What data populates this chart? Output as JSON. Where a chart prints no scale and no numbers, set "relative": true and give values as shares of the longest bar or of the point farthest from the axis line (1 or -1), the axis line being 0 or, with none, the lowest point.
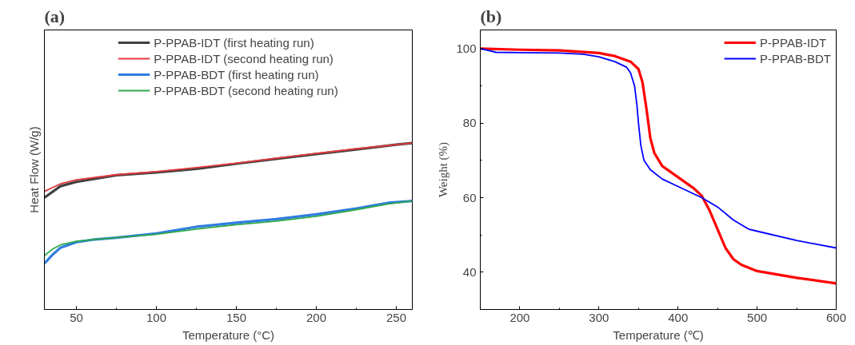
{
  "chart_data": [
    {
      "type": "line",
      "title": "(a)",
      "xlabel": "Temperature (°C)",
      "ylabel": "Heat Flow (W/g)",
      "relative": true,
      "xlim": [
        30,
        260
      ],
      "xticks": [
        50,
        100,
        150,
        200,
        250
      ],
      "legend": "top",
      "grid": false,
      "series": [
        {
          "name": "P-PPAB-IDT (first heating run)",
          "color": "#404040",
          "x": [
            30,
            40,
            50,
            75,
            100,
            125,
            150,
            175,
            200,
            225,
            250,
            260
          ],
          "values": [
            0.672,
            0.741,
            0.767,
            0.807,
            0.824,
            0.845,
            0.876,
            0.905,
            0.934,
            0.962,
            0.991,
            1.0
          ]
        },
        {
          "name": "P-PPAB-IDT (second heating run)",
          "color": "#e8383d",
          "x": [
            30,
            40,
            50,
            75,
            100,
            125,
            150,
            175,
            200,
            225,
            250,
            260
          ],
          "values": [
            0.71,
            0.755,
            0.779,
            0.81,
            0.829,
            0.853,
            0.879,
            0.909,
            0.938,
            0.966,
            0.991,
            1.0
          ]
        },
        {
          "name": "P-PPAB-BDT (first heating run)",
          "color": "#2f7de1",
          "x": [
            30,
            35,
            40,
            50,
            60,
            75,
            100,
            125,
            150,
            175,
            200,
            225,
            245,
            260
          ],
          "values": [
            0.276,
            0.328,
            0.371,
            0.405,
            0.419,
            0.431,
            0.457,
            0.497,
            0.521,
            0.543,
            0.572,
            0.607,
            0.641,
            0.652
          ]
        },
        {
          "name": "P-PPAB-BDT (second heating run)",
          "color": "#2ea84a",
          "x": [
            30,
            35,
            40,
            50,
            60,
            75,
            100,
            125,
            150,
            175,
            200,
            225,
            245,
            260
          ],
          "values": [
            0.324,
            0.362,
            0.388,
            0.41,
            0.419,
            0.431,
            0.452,
            0.483,
            0.509,
            0.531,
            0.56,
            0.6,
            0.634,
            0.652
          ]
        }
      ]
    },
    {
      "type": "line",
      "title": "(b)",
      "xlabel": "Temperature (℃)",
      "ylabel": "Weight (%)",
      "xlim": [
        150,
        600
      ],
      "xticks": [
        200,
        300,
        400,
        500,
        600
      ],
      "ylim": [
        30,
        105
      ],
      "yticks": [
        40,
        60,
        80,
        100
      ],
      "legend": "top right",
      "grid": false,
      "series": [
        {
          "name": "P-PPAB-IDT",
          "color": "#ff0000",
          "x": [
            150,
            200,
            250,
            300,
            320,
            340,
            350,
            355,
            360,
            365,
            370,
            380,
            400,
            420,
            430,
            440,
            450,
            460,
            470,
            480,
            500,
            550,
            600
          ],
          "values": [
            100,
            99.7,
            99.5,
            98.8,
            98,
            96.5,
            94.5,
            91,
            84,
            76,
            72,
            68.5,
            65.5,
            62.5,
            60.5,
            56.5,
            51.5,
            46.5,
            43.5,
            42,
            40.3,
            38.5,
            37
          ]
        },
        {
          "name": "P-PPAB-BDT",
          "color": "#0000ff",
          "x": [
            150,
            160,
            170,
            200,
            250,
            280,
            300,
            320,
            335,
            340,
            345,
            348,
            350,
            353,
            357,
            365,
            380,
            400,
            430,
            450,
            470,
            490,
            500,
            550,
            600
          ],
          "values": [
            100,
            99.5,
            99,
            98.9,
            98.8,
            98.5,
            97.8,
            96.5,
            95,
            93.5,
            90,
            85,
            80,
            74,
            70,
            67.5,
            65,
            63,
            60,
            57.5,
            54,
            51.5,
            51,
            48.5,
            46.5
          ]
        }
      ]
    }
  ]
}
